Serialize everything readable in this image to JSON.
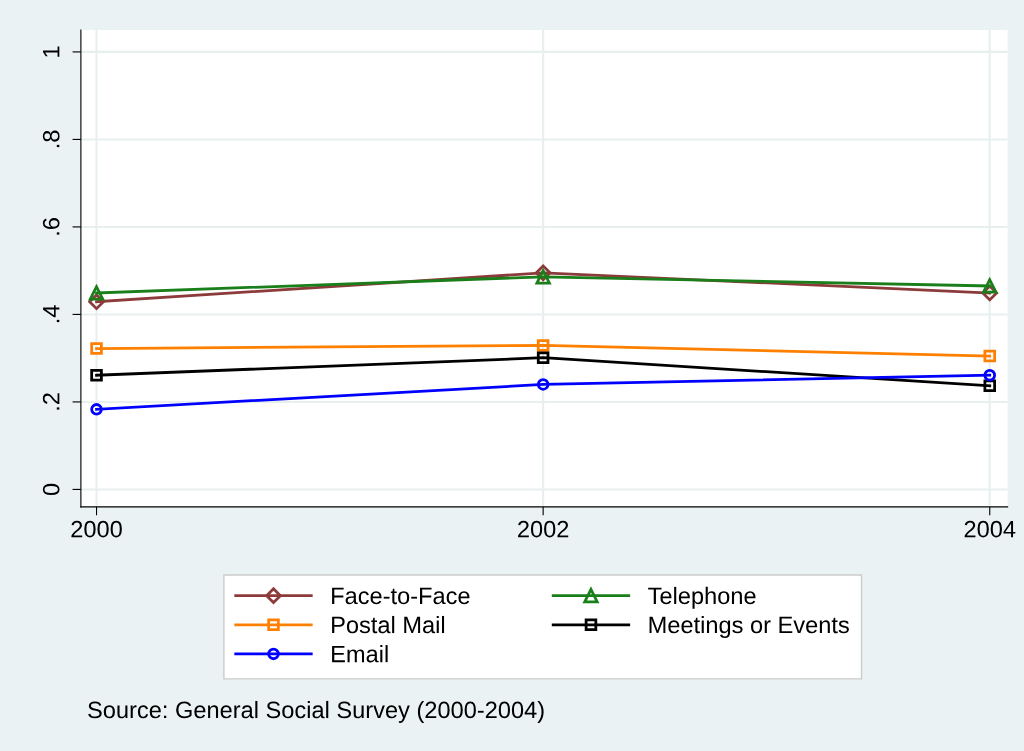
{
  "chart_data": {
    "type": "line",
    "x": [
      2000,
      2002,
      2004
    ],
    "series": [
      {
        "name": "Face-to-Face",
        "color": "#8c3a3a",
        "marker": "diamond",
        "values": [
          0.429,
          0.495,
          0.449
        ]
      },
      {
        "name": "Telephone",
        "color": "#1a7f1a",
        "marker": "triangle",
        "values": [
          0.449,
          0.486,
          0.465
        ]
      },
      {
        "name": "Postal Mail",
        "color": "#ff8000",
        "marker": "square",
        "values": [
          0.322,
          0.329,
          0.305
        ]
      },
      {
        "name": "Meetings or Events",
        "color": "#000000",
        "marker": "square",
        "values": [
          0.261,
          0.301,
          0.237
        ]
      },
      {
        "name": "Email",
        "color": "#0000ff",
        "marker": "circle",
        "values": [
          0.183,
          0.24,
          0.261
        ]
      }
    ],
    "xlim": [
      1999.93,
      2004.08
    ],
    "xticks": [
      2000,
      2002,
      2004
    ],
    "ylim": [
      -0.04,
      1.05
    ],
    "yticks": [
      0,
      {
        "value": 0.2,
        "label": ".2"
      },
      {
        "value": 0.4,
        "label": ".4"
      },
      {
        "value": 0.6,
        "label": ".6"
      },
      {
        "value": 0.8,
        "label": ".8"
      },
      1
    ],
    "grid": true,
    "legend": "bottom",
    "line_style": "solid",
    "annotations": [
      "Source: General Social Survey (2000-2004)"
    ]
  }
}
